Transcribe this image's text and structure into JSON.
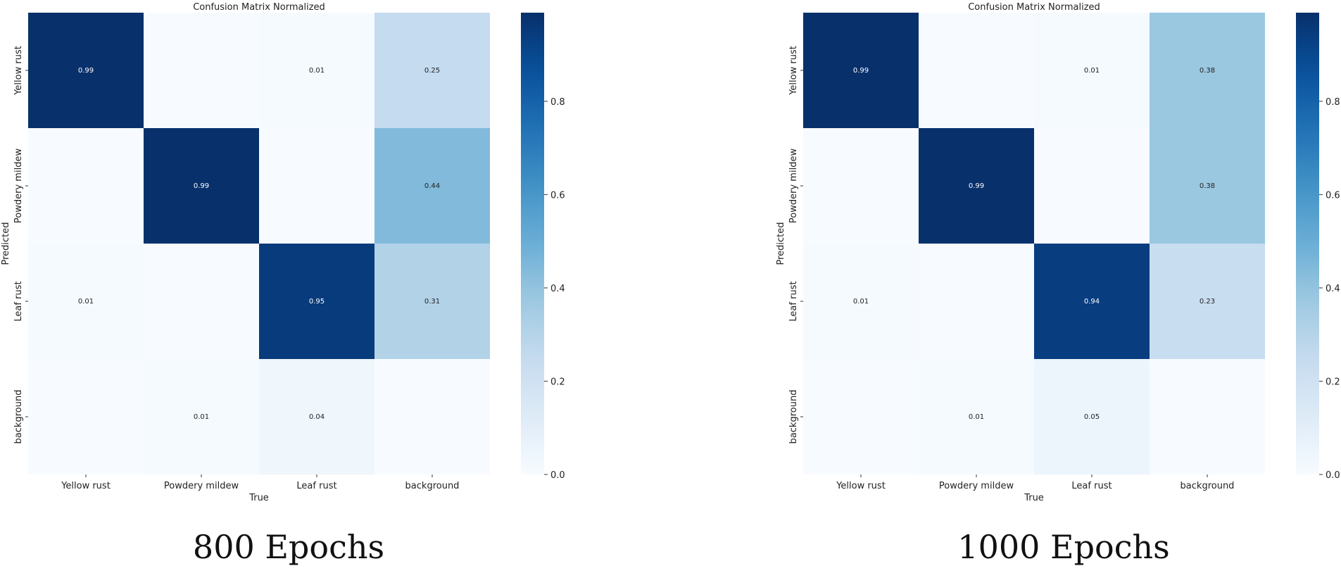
{
  "chart_data": [
    {
      "type": "heatmap",
      "title": "Confusion Matrix Normalized",
      "xlabel": "True",
      "ylabel": "Predicted",
      "x_categories": [
        "Yellow rust",
        "Powdery mildew",
        "Leaf rust",
        "background"
      ],
      "y_categories": [
        "Yellow rust",
        "Powdery mildew",
        "Leaf rust",
        "background"
      ],
      "values": [
        [
          0.99,
          null,
          0.01,
          0.25
        ],
        [
          null,
          0.99,
          null,
          0.44
        ],
        [
          0.01,
          null,
          0.95,
          0.31
        ],
        [
          null,
          0.01,
          0.04,
          null
        ]
      ],
      "colorbar": {
        "range": [
          0,
          0.99
        ],
        "ticks": [
          "0.0",
          "0.2",
          "0.4",
          "0.6",
          "0.8"
        ],
        "tick_values": [
          0,
          0.2,
          0.4,
          0.6,
          0.8
        ]
      },
      "colormap": "Blues",
      "caption": "800 Epochs"
    },
    {
      "type": "heatmap",
      "title": "Confusion Matrix Normalized",
      "xlabel": "True",
      "ylabel": "Predicted",
      "x_categories": [
        "Yellow rust",
        "Powdery mildew",
        "Leaf rust",
        "background"
      ],
      "y_categories": [
        "Yellow rust",
        "Powdery mildew",
        "Leaf rust",
        "background"
      ],
      "values": [
        [
          0.99,
          null,
          0.01,
          0.38
        ],
        [
          null,
          0.99,
          null,
          0.38
        ],
        [
          0.01,
          null,
          0.94,
          0.23
        ],
        [
          null,
          0.01,
          0.05,
          null
        ]
      ],
      "colorbar": {
        "range": [
          0,
          0.99
        ],
        "ticks": [
          "0.0",
          "0.2",
          "0.4",
          "0.6",
          "0.8"
        ],
        "tick_values": [
          0,
          0.2,
          0.4,
          0.6,
          0.8
        ]
      },
      "colormap": "Blues",
      "caption": "1000 Epochs"
    }
  ]
}
